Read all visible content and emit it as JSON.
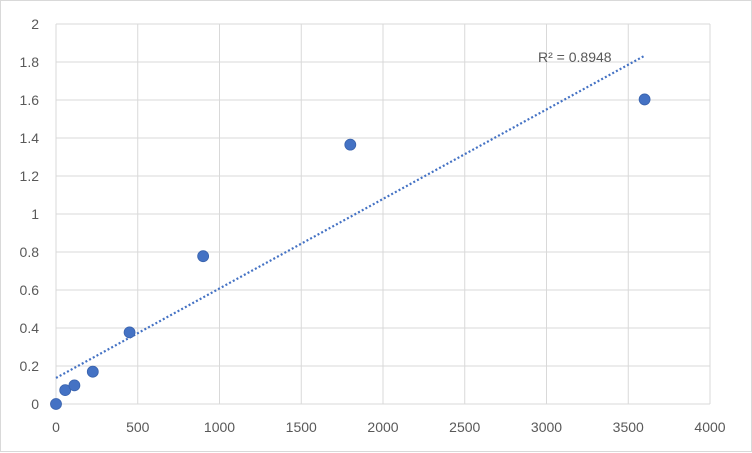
{
  "chart_data": {
    "type": "scatter",
    "title": "",
    "xlabel": "",
    "ylabel": "",
    "xlim": [
      0,
      4000
    ],
    "ylim": [
      0,
      2
    ],
    "x_ticks": [
      0,
      500,
      1000,
      1500,
      2000,
      2500,
      3000,
      3500,
      4000
    ],
    "y_ticks": [
      0,
      0.2,
      0.4,
      0.6,
      0.8,
      1,
      1.2,
      1.4,
      1.6,
      1.8,
      2
    ],
    "grid": true,
    "legend": "none",
    "series": [
      {
        "x": [
          0,
          56.25,
          112.5,
          225,
          450,
          900,
          1800,
          3600
        ],
        "y": [
          0,
          0.073,
          0.098,
          0.17,
          0.377,
          0.778,
          1.365,
          1.603
        ],
        "color": "#4472c4"
      }
    ],
    "trendline": {
      "type": "linear",
      "style": "dotted",
      "color": "#4472c4",
      "start": [
        0,
        0.137
      ],
      "end": [
        3600,
        1.833
      ]
    },
    "annotation": "R² = 0.8948"
  }
}
